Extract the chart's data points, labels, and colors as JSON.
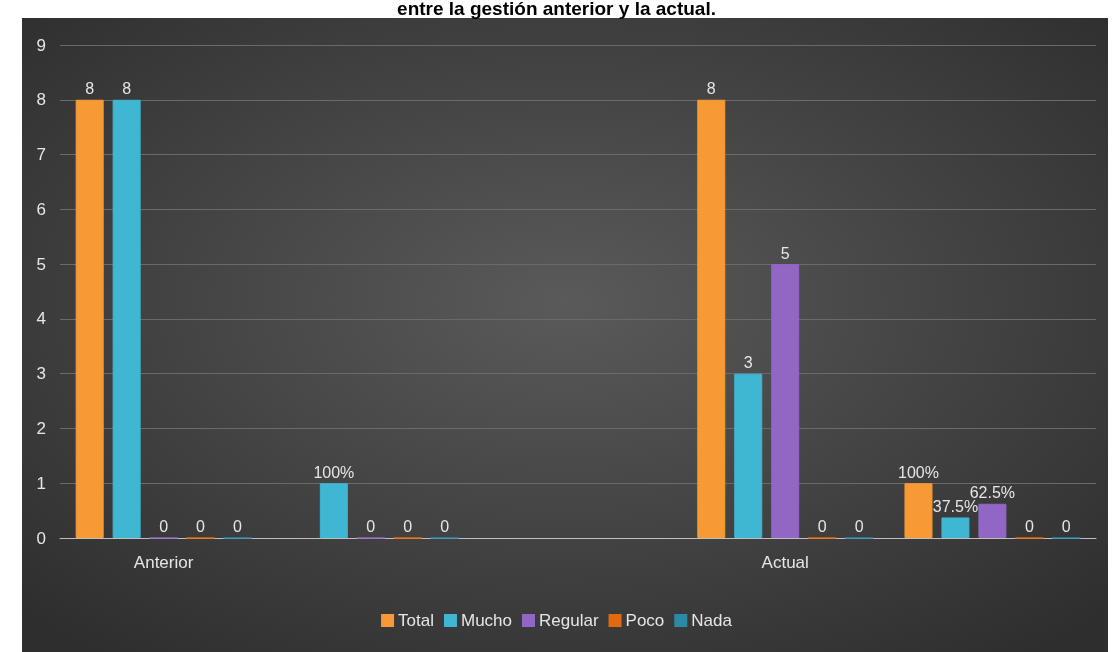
{
  "chart_data": {
    "type": "bar",
    "title": "entre la gestión anterior y la actual.",
    "categories": [
      "Anterior",
      null,
      null,
      "Actual",
      null
    ],
    "series": [
      {
        "name": "Total",
        "color": "#f79a35",
        "values": [
          8,
          null,
          null,
          8,
          1
        ],
        "value_labels": [
          "8",
          null,
          null,
          "8",
          "100%"
        ]
      },
      {
        "name": "Mucho",
        "color": "#3fb6d2",
        "values": [
          8,
          1,
          null,
          3,
          0.375
        ],
        "value_labels": [
          "8",
          "100%",
          null,
          "3",
          "37.5%"
        ]
      },
      {
        "name": "Regular",
        "color": "#9166c4",
        "values": [
          0,
          0,
          null,
          5,
          0.625
        ],
        "value_labels": [
          "0",
          "0",
          null,
          "5",
          "62.5%"
        ]
      },
      {
        "name": "Poco",
        "color": "#e2690e",
        "values": [
          0,
          0,
          null,
          0,
          0
        ],
        "value_labels": [
          "0",
          "0",
          null,
          "0",
          "0"
        ]
      },
      {
        "name": "Nada",
        "color": "#2b8aa6",
        "values": [
          0,
          0,
          null,
          0,
          0
        ],
        "value_labels": [
          "0",
          "0",
          null,
          "0",
          "0"
        ]
      }
    ],
    "ylim": [
      0,
      9
    ],
    "yticks": [
      0,
      1,
      2,
      3,
      4,
      5,
      6,
      7,
      8,
      9
    ],
    "grid": "y",
    "legend": "bottom"
  }
}
